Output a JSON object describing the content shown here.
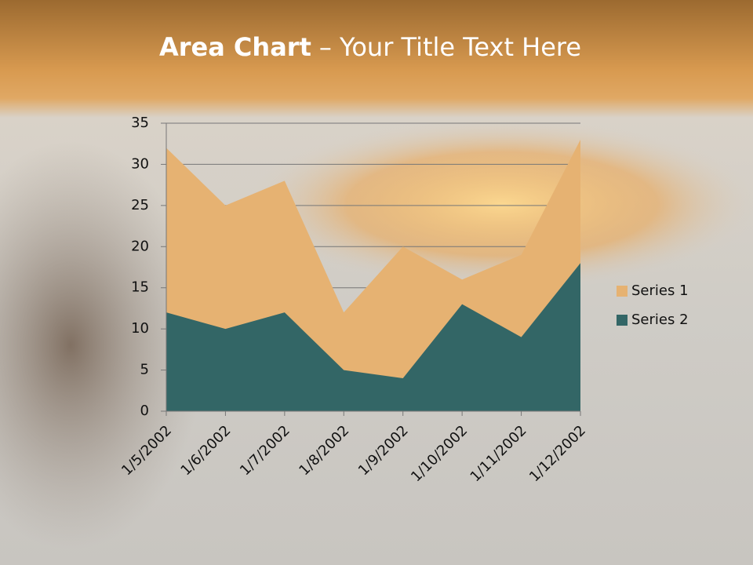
{
  "chart_data": {
    "type": "area",
    "title_bold": "Area Chart",
    "title_rest": "– Your Title Text Here",
    "categories": [
      "1/5/2002",
      "1/6/2002",
      "1/7/2002",
      "1/8/2002",
      "1/9/2002",
      "1/10/2002",
      "1/11/2002",
      "1/12/2002"
    ],
    "series": [
      {
        "name": "Series 1",
        "color": "#e6b272",
        "values": [
          32,
          25,
          28,
          12,
          20,
          16,
          19,
          33
        ]
      },
      {
        "name": "Series 2",
        "color": "#336666",
        "values": [
          12,
          10,
          12,
          5,
          4,
          13,
          9,
          18
        ]
      }
    ],
    "ylim": [
      0,
      35
    ],
    "yticks": [
      0,
      5,
      10,
      15,
      20,
      25,
      30,
      35
    ],
    "grid": true,
    "legend": "right"
  }
}
